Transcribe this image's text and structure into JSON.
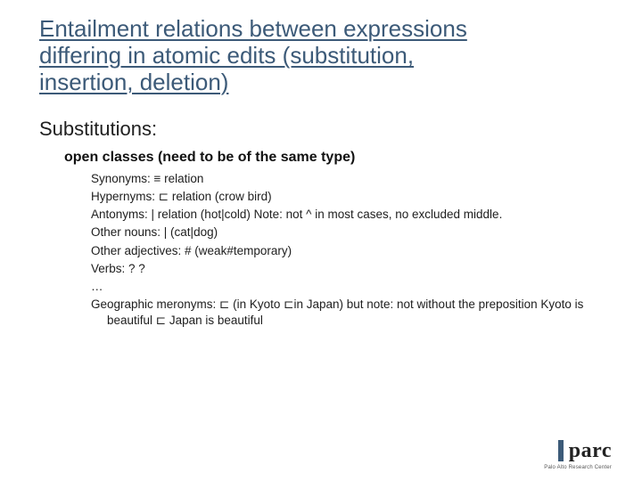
{
  "title_line1": "Entailment relations between expressions",
  "title_line2": "differing in atomic edits (substitution,",
  "title_line3": "insertion, deletion)",
  "section": "Substitutions:",
  "sub": "open classes (need to be of the same type)",
  "items": [
    "Synonyms: ≡ relation",
    "Hypernyms: ⊏ relation (crow  bird)",
    "Antonyms: | relation (hot|cold)  Note: not ^ in most cases, no excluded middle.",
    "Other nouns: | (cat|dog)",
    "Other adjectives: # (weak#temporary)",
    "Verbs: ? ?",
    "…",
    "Geographic meronyms: ⊏ (in Kyoto ⊏in Japan) but note: not without the preposition Kyoto is beautiful ⊏ Japan is beautiful"
  ],
  "logo_text": "parc",
  "logo_sub": "Palo Alto Research Center",
  "colors": {
    "title": "#3c5a78",
    "body": "#202020",
    "logo_bar": "#3c5a78",
    "background": "#ffffff"
  },
  "typography": {
    "title_fontsize": 26,
    "section_fontsize": 22,
    "sub_fontsize": 16,
    "item_fontsize": 13.5,
    "title_weight": 400,
    "sub_weight": 700
  }
}
